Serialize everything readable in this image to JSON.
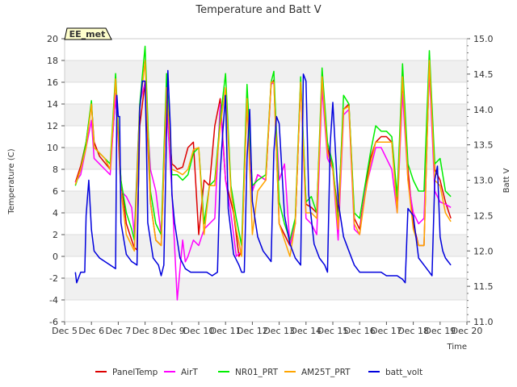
{
  "chart_data": {
    "type": "line",
    "title": "Temperature and Batt V",
    "station_label": "EE_met",
    "xlabel": "Time",
    "ylabel_left": "Temperature (C)",
    "ylabel_right": "Batt V",
    "xlim": [
      5,
      20
    ],
    "ylim_left": [
      -6,
      20
    ],
    "ylim_right": [
      11.0,
      15.0
    ],
    "x_ticks": [
      5,
      6,
      7,
      8,
      9,
      10,
      11,
      12,
      13,
      14,
      15,
      16,
      17,
      18,
      19,
      20
    ],
    "x_tick_labels": [
      "Dec 5",
      "Dec 6",
      "Dec 7",
      "Dec 8",
      "Dec 9",
      "Dec 10",
      "Dec 11",
      "Dec 12",
      "Dec 13",
      "Dec 14",
      "Dec 15",
      "Dec 16",
      "Dec 17",
      "Dec 18",
      "Dec 19",
      "Dec 20"
    ],
    "y_ticks_left": [
      -6,
      -4,
      -2,
      0,
      2,
      4,
      6,
      8,
      10,
      12,
      14,
      16,
      18,
      20
    ],
    "y_ticks_right": [
      11.0,
      11.5,
      12.0,
      12.5,
      13.0,
      13.5,
      14.0,
      14.5,
      15.0
    ],
    "background": "alternating horizontal bands",
    "legend_position": "bottom",
    "series": [
      {
        "name": "PanelTemp",
        "color": "#dd0000",
        "axis": "left",
        "x": [
          5.4,
          5.6,
          5.8,
          6.0,
          6.1,
          6.3,
          6.5,
          6.7,
          6.9,
          7.1,
          7.3,
          7.5,
          7.6,
          7.7,
          7.8,
          8.0,
          8.2,
          8.4,
          8.6,
          8.8,
          9.0,
          9.1,
          9.2,
          9.4,
          9.6,
          9.8,
          10.0,
          10.2,
          10.4,
          10.6,
          10.8,
          11.0,
          11.3,
          11.5,
          11.6,
          11.8,
          12.0,
          12.2,
          12.5,
          12.7,
          12.8,
          13.0,
          13.2,
          13.4,
          13.6,
          13.8,
          14.0,
          14.2,
          14.4,
          14.6,
          14.8,
          15.0,
          15.2,
          15.4,
          15.6,
          15.8,
          16.0,
          16.2,
          16.4,
          16.6,
          16.8,
          17.0,
          17.2,
          17.4,
          17.6,
          17.8,
          18.0,
          18.2,
          18.4,
          18.6,
          18.8,
          19.0,
          19.2,
          19.4
        ],
        "values": [
          6.8,
          8.3,
          10.5,
          14.0,
          10.5,
          9.2,
          8.6,
          8.0,
          14.8,
          7.0,
          3.0,
          1.5,
          0.8,
          0.6,
          12.0,
          16.0,
          5.0,
          1.5,
          1.0,
          15.0,
          8.5,
          8.3,
          8.0,
          8.2,
          10.0,
          10.5,
          2.0,
          7.0,
          6.5,
          12.0,
          14.5,
          7.0,
          4.0,
          0.0,
          0.5,
          14.0,
          6.0,
          7.5,
          7.0,
          15.8,
          16.2,
          3.0,
          2.0,
          1.0,
          3.0,
          16.0,
          4.8,
          4.5,
          4.0,
          16.0,
          10.0,
          8.0,
          4.0,
          13.5,
          14.0,
          3.5,
          2.5,
          6.0,
          9.0,
          10.5,
          11.0,
          11.0,
          10.5,
          5.0,
          16.0,
          8.0,
          3.0,
          1.0,
          1.0,
          17.8,
          8.0,
          7.0,
          5.0,
          3.5
        ]
      },
      {
        "name": "AirT",
        "color": "#ff00ff",
        "axis": "left",
        "x": [
          5.4,
          5.6,
          5.8,
          6.0,
          6.1,
          6.3,
          6.5,
          6.7,
          6.9,
          7.1,
          7.3,
          7.5,
          7.6,
          7.8,
          8.0,
          8.2,
          8.4,
          8.6,
          8.8,
          9.0,
          9.2,
          9.4,
          9.5,
          9.6,
          9.8,
          10.0,
          10.2,
          10.4,
          10.6,
          10.8,
          11.0,
          11.2,
          11.4,
          11.6,
          11.8,
          12.0,
          12.2,
          12.5,
          12.7,
          12.8,
          13.0,
          13.2,
          13.4,
          13.6,
          13.8,
          14.0,
          14.2,
          14.4,
          14.6,
          14.8,
          15.0,
          15.2,
          15.4,
          15.6,
          15.8,
          16.0,
          16.2,
          16.4,
          16.6,
          16.8,
          17.0,
          17.2,
          17.4,
          17.6,
          17.8,
          18.0,
          18.2,
          18.4,
          18.6,
          18.8,
          19.0,
          19.2,
          19.4
        ],
        "values": [
          6.8,
          7.5,
          10.0,
          12.5,
          9.0,
          8.5,
          8.0,
          7.5,
          15.0,
          6.0,
          5.5,
          4.5,
          2.0,
          14.0,
          16.0,
          8.0,
          6.0,
          2.0,
          14.0,
          6.0,
          -4.0,
          1.5,
          -0.5,
          0.0,
          1.5,
          1.0,
          2.5,
          3.0,
          3.5,
          14.0,
          7.0,
          4.0,
          0.0,
          0.5,
          14.5,
          6.0,
          7.5,
          7.0,
          15.8,
          16.0,
          7.0,
          8.5,
          1.0,
          3.0,
          16.0,
          3.5,
          3.0,
          2.0,
          15.5,
          9.0,
          8.0,
          1.5,
          13.0,
          13.5,
          2.5,
          2.0,
          6.0,
          8.0,
          10.0,
          10.0,
          9.0,
          8.0,
          4.0,
          15.0,
          7.0,
          4.0,
          3.0,
          3.5,
          17.0,
          6.0,
          5.0,
          4.8,
          4.5
        ]
      },
      {
        "name": "NR01_PRT",
        "color": "#00ee00",
        "axis": "left",
        "x": [
          5.4,
          5.6,
          5.8,
          6.0,
          6.1,
          6.3,
          6.5,
          6.7,
          6.9,
          7.1,
          7.3,
          7.5,
          7.6,
          7.8,
          8.0,
          8.2,
          8.4,
          8.6,
          8.8,
          9.0,
          9.2,
          9.4,
          9.6,
          9.8,
          10.0,
          10.2,
          10.4,
          10.6,
          10.8,
          11.0,
          11.2,
          11.4,
          11.6,
          11.8,
          12.0,
          12.2,
          12.5,
          12.7,
          12.8,
          13.0,
          13.2,
          13.4,
          13.6,
          13.8,
          14.0,
          14.2,
          14.4,
          14.6,
          14.8,
          15.0,
          15.2,
          15.4,
          15.6,
          15.8,
          16.0,
          16.2,
          16.4,
          16.6,
          16.8,
          17.0,
          17.2,
          17.4,
          17.6,
          17.8,
          18.0,
          18.2,
          18.4,
          18.6,
          18.8,
          19.0,
          19.2,
          19.4
        ],
        "values": [
          6.5,
          8.0,
          10.5,
          14.3,
          10.0,
          9.5,
          9.0,
          8.5,
          16.8,
          7.0,
          4.0,
          2.5,
          1.5,
          14.0,
          19.3,
          6.0,
          3.0,
          2.0,
          16.8,
          7.5,
          7.5,
          7.0,
          7.5,
          9.5,
          10.0,
          3.0,
          6.5,
          7.0,
          12.5,
          16.8,
          6.5,
          3.5,
          1.0,
          15.8,
          6.5,
          7.0,
          7.5,
          16.0,
          17.0,
          5.0,
          3.0,
          1.5,
          3.5,
          16.5,
          5.0,
          5.5,
          4.0,
          17.3,
          10.5,
          8.5,
          3.0,
          14.8,
          14.0,
          4.0,
          3.5,
          6.5,
          9.5,
          12.0,
          11.5,
          11.5,
          11.0,
          5.5,
          17.7,
          8.5,
          7.0,
          6.0,
          6.0,
          18.9,
          8.5,
          9.0,
          6.0,
          5.5
        ]
      },
      {
        "name": "AM25T_PRT",
        "color": "#ffa500",
        "axis": "left",
        "x": [
          5.4,
          5.6,
          5.8,
          6.0,
          6.1,
          6.3,
          6.5,
          6.7,
          6.9,
          7.1,
          7.3,
          7.5,
          7.6,
          7.8,
          8.0,
          8.2,
          8.4,
          8.6,
          8.8,
          9.0,
          9.2,
          9.4,
          9.6,
          9.8,
          10.0,
          10.2,
          10.4,
          10.6,
          10.8,
          11.0,
          11.2,
          11.4,
          11.6,
          11.8,
          12.0,
          12.2,
          12.5,
          12.7,
          12.8,
          13.0,
          13.2,
          13.4,
          13.6,
          13.8,
          14.0,
          14.2,
          14.4,
          14.6,
          14.8,
          15.0,
          15.2,
          15.4,
          15.6,
          15.8,
          16.0,
          16.2,
          16.4,
          16.6,
          16.8,
          17.0,
          17.2,
          17.4,
          17.6,
          17.8,
          18.0,
          18.2,
          18.4,
          18.6,
          18.8,
          19.0,
          19.2,
          19.4
        ],
        "values": [
          6.6,
          8.0,
          10.0,
          14.0,
          10.0,
          9.5,
          9.0,
          8.0,
          16.3,
          6.0,
          2.0,
          1.0,
          0.5,
          13.5,
          18.0,
          5.0,
          1.5,
          1.0,
          15.5,
          8.0,
          7.8,
          7.5,
          8.0,
          9.8,
          10.0,
          2.0,
          6.5,
          6.5,
          12.0,
          15.5,
          6.0,
          2.5,
          0.0,
          14.5,
          2.0,
          6.0,
          7.0,
          16.0,
          16.0,
          3.0,
          1.5,
          0.0,
          3.0,
          16.0,
          4.0,
          4.0,
          3.5,
          16.5,
          9.5,
          8.0,
          2.5,
          13.5,
          13.8,
          3.0,
          2.0,
          5.5,
          8.5,
          10.5,
          10.5,
          10.5,
          10.5,
          4.0,
          16.5,
          7.0,
          2.5,
          1.0,
          1.0,
          18.0,
          7.0,
          6.5,
          4.0,
          3.2
        ]
      },
      {
        "name": "batt_volt",
        "color": "#0000dd",
        "axis": "right",
        "x": [
          5.4,
          5.45,
          5.6,
          5.75,
          5.8,
          5.9,
          6.0,
          6.1,
          6.3,
          6.5,
          6.7,
          6.9,
          6.95,
          7.0,
          7.05,
          7.1,
          7.3,
          7.5,
          7.7,
          7.8,
          7.9,
          8.0,
          8.05,
          8.1,
          8.3,
          8.5,
          8.6,
          8.7,
          8.85,
          8.95,
          9.0,
          9.1,
          9.3,
          9.5,
          9.7,
          9.9,
          10.1,
          10.3,
          10.5,
          10.7,
          10.8,
          10.9,
          11.0,
          11.1,
          11.3,
          11.5,
          11.6,
          11.7,
          11.8,
          11.9,
          12.0,
          12.2,
          12.4,
          12.6,
          12.7,
          12.8,
          12.9,
          13.0,
          13.2,
          13.4,
          13.6,
          13.8,
          13.9,
          14.0,
          14.1,
          14.3,
          14.5,
          14.7,
          14.8,
          14.9,
          15.0,
          15.2,
          15.4,
          15.6,
          15.8,
          15.9,
          16.0,
          16.2,
          16.4,
          16.6,
          16.8,
          17.0,
          17.2,
          17.4,
          17.6,
          17.7,
          17.8,
          18.0,
          18.2,
          18.4,
          18.6,
          18.7,
          18.8,
          18.9,
          19.0,
          19.1,
          19.2,
          19.4
        ],
        "values": [
          11.7,
          11.55,
          11.7,
          11.7,
          12.5,
          13.0,
          12.3,
          12.0,
          11.9,
          11.85,
          11.8,
          11.75,
          14.2,
          13.9,
          13.9,
          12.4,
          11.95,
          11.85,
          11.8,
          14.0,
          14.4,
          14.4,
          13.5,
          12.4,
          11.9,
          11.8,
          11.65,
          11.8,
          14.55,
          13.7,
          12.8,
          12.4,
          11.9,
          11.75,
          11.7,
          11.7,
          11.7,
          11.7,
          11.65,
          11.7,
          13.1,
          13.7,
          14.2,
          12.6,
          11.95,
          11.8,
          11.7,
          11.7,
          13.3,
          14.0,
          12.7,
          12.2,
          12.0,
          11.9,
          11.85,
          13.4,
          13.9,
          13.8,
          12.5,
          12.1,
          11.9,
          11.8,
          14.5,
          14.4,
          12.8,
          12.1,
          11.9,
          11.8,
          11.7,
          13.5,
          14.1,
          12.7,
          12.2,
          12.0,
          11.8,
          11.75,
          11.7,
          11.7,
          11.7,
          11.7,
          11.7,
          11.65,
          11.65,
          11.65,
          11.6,
          11.55,
          12.6,
          12.5,
          11.9,
          11.8,
          11.7,
          11.65,
          13.0,
          13.2,
          12.2,
          12.0,
          11.9,
          11.8
        ]
      }
    ]
  }
}
